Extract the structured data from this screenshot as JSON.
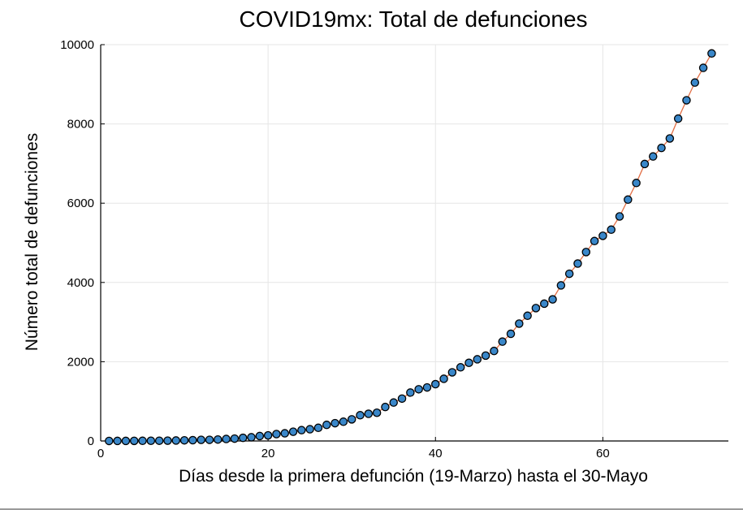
{
  "chart_data": {
    "type": "line",
    "title": "COVID19mx: Total de defunciones",
    "xlabel": "Días desde la primera defunción (19-Marzo) hasta el 30-Mayo",
    "ylabel": "Número total de defunciones",
    "xlim": [
      0,
      75
    ],
    "ylim": [
      0,
      10000
    ],
    "x_ticks": [
      0,
      20,
      40,
      60
    ],
    "y_ticks": [
      0,
      2000,
      4000,
      6000,
      8000,
      10000
    ],
    "x_tick_labels": [
      "0",
      "20",
      "40",
      "60"
    ],
    "y_tick_labels": [
      "0",
      "2000",
      "4000",
      "6000",
      "8000",
      "10000"
    ],
    "grid": true,
    "legend": "none",
    "colors": {
      "line": "#e26f46",
      "marker_fill": "#3a87c9",
      "marker_edge": "#000000"
    },
    "series": [
      {
        "x": [
          1,
          2,
          3,
          4,
          5,
          6,
          7,
          8,
          9,
          10,
          11,
          12,
          13,
          14,
          15,
          16,
          17,
          18,
          19,
          20,
          21,
          22,
          23,
          24,
          25,
          26,
          27,
          28,
          29,
          30,
          31,
          32,
          33,
          34,
          35,
          36,
          37,
          38,
          39,
          40,
          41,
          42,
          43,
          44,
          45,
          46,
          47,
          48,
          49,
          50,
          51,
          52,
          53,
          54,
          55,
          56,
          57,
          58,
          59,
          60,
          61,
          62,
          63,
          64,
          65,
          66,
          67,
          68,
          69,
          70,
          71,
          72,
          73
        ],
        "values": [
          1,
          2,
          2,
          3,
          4,
          5,
          6,
          8,
          12,
          16,
          20,
          28,
          29,
          37,
          50,
          60,
          79,
          94,
          125,
          141,
          174,
          194,
          233,
          273,
          296,
          332,
          406,
          449,
          486,
          546,
          650,
          686,
          712,
          857,
          970,
          1069,
          1221,
          1305,
          1351,
          1434,
          1569,
          1732,
          1859,
          1972,
          2061,
          2154,
          2271,
          2507,
          2704,
          2961,
          3160,
          3353,
          3465,
          3573,
          3926,
          4220,
          4477,
          4767,
          5045,
          5177,
          5332,
          5666,
          6090,
          6510,
          6989,
          7179,
          7394,
          7633,
          8134,
          8597,
          9044,
          9415,
          9779
        ]
      }
    ]
  }
}
